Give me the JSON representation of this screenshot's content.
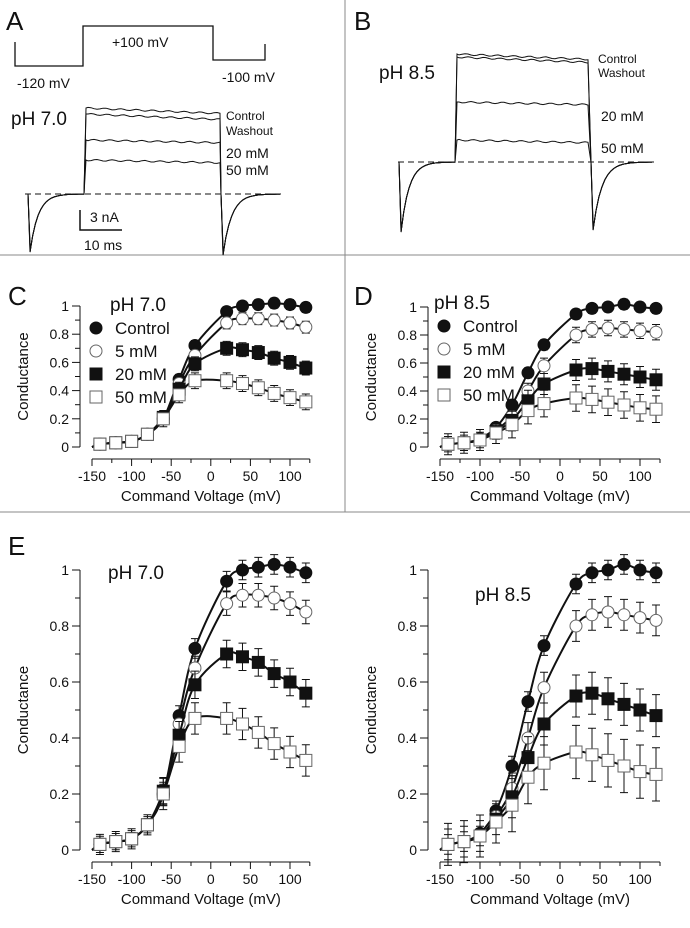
{
  "panel_a": {
    "letter": "A",
    "step_label": "+100 mV",
    "hold_label": "-120 mV",
    "tail_label": "-100 mV",
    "ph": "pH 7.0",
    "traces": [
      "Control",
      "Washout",
      "20 mM",
      "50 mM"
    ],
    "scale_current": "3 nA",
    "scale_time": "10 ms"
  },
  "panel_b": {
    "letter": "B",
    "ph": "pH 8.5",
    "traces": [
      "Control",
      "Washout",
      "20 mM",
      "50 mM"
    ]
  },
  "panel_letters": {
    "c": "C",
    "d": "D",
    "e": "E"
  },
  "chart_data": [
    {
      "type": "scatter",
      "panel": "C",
      "title": "pH 7.0",
      "xlabel": "Command Voltage (mV)",
      "ylabel": "Conductance",
      "xlim": [
        -150,
        125
      ],
      "ylim": [
        0,
        1
      ],
      "xticks": [
        "-150",
        "-100",
        "-50",
        "0",
        "50",
        "100"
      ],
      "yticks": [
        "0",
        "0.2",
        "0.4",
        "0.6",
        "0.8",
        "1"
      ],
      "legend": "top-left",
      "x": [
        -140,
        -120,
        -100,
        -80,
        -60,
        -40,
        -20,
        20,
        40,
        60,
        80,
        100,
        120
      ],
      "series": [
        {
          "name": "Control",
          "marker": "filled-circle",
          "values": [
            0.02,
            0.03,
            0.04,
            0.09,
            0.2,
            0.48,
            0.72,
            0.96,
            1.0,
            1.01,
            1.02,
            1.01,
            0.99
          ]
        },
        {
          "name": "5 mM",
          "marker": "open-circle",
          "values": [
            0.02,
            0.03,
            0.04,
            0.09,
            0.2,
            0.45,
            0.65,
            0.88,
            0.91,
            0.91,
            0.9,
            0.88,
            0.85
          ]
        },
        {
          "name": "20 mM",
          "marker": "filled-square",
          "values": [
            0.02,
            0.03,
            0.04,
            0.09,
            0.21,
            0.41,
            0.59,
            0.7,
            0.69,
            0.67,
            0.63,
            0.6,
            0.56
          ]
        },
        {
          "name": "50 mM",
          "marker": "open-square",
          "values": [
            0.02,
            0.03,
            0.04,
            0.09,
            0.2,
            0.37,
            0.47,
            0.47,
            0.45,
            0.42,
            0.38,
            0.35,
            0.32
          ]
        }
      ]
    },
    {
      "type": "scatter",
      "panel": "D",
      "title": "pH 8.5",
      "xlabel": "Command Voltage (mV)",
      "ylabel": "Conductance",
      "xlim": [
        -150,
        125
      ],
      "ylim": [
        0,
        1
      ],
      "xticks": [
        "-150",
        "-100",
        "-50",
        "0",
        "50",
        "100"
      ],
      "yticks": [
        "0",
        "0.2",
        "0.4",
        "0.6",
        "0.8",
        "1"
      ],
      "legend": "top-left",
      "x": [
        -140,
        -120,
        -100,
        -80,
        -60,
        -40,
        -20,
        20,
        40,
        60,
        80,
        100,
        120
      ],
      "series": [
        {
          "name": "Control",
          "marker": "filled-circle",
          "values": [
            0.02,
            0.03,
            0.06,
            0.14,
            0.3,
            0.53,
            0.73,
            0.95,
            0.99,
            1.0,
            1.02,
            1.0,
            0.99
          ]
        },
        {
          "name": "5 mM",
          "marker": "open-circle",
          "values": [
            0.02,
            0.03,
            0.05,
            0.12,
            0.22,
            0.4,
            0.58,
            0.8,
            0.84,
            0.85,
            0.84,
            0.83,
            0.82
          ]
        },
        {
          "name": "20 mM",
          "marker": "filled-square",
          "values": [
            0.02,
            0.03,
            0.05,
            0.11,
            0.19,
            0.33,
            0.45,
            0.55,
            0.56,
            0.54,
            0.52,
            0.5,
            0.48
          ]
        },
        {
          "name": "50 mM",
          "marker": "open-square",
          "values": [
            0.02,
            0.03,
            0.05,
            0.1,
            0.16,
            0.26,
            0.31,
            0.35,
            0.34,
            0.32,
            0.3,
            0.28,
            0.27
          ]
        }
      ]
    },
    {
      "type": "scatter",
      "panel": "E-left",
      "title": "pH 7.0",
      "xlabel": "Command Voltage (mV)",
      "ylabel": "Conductance",
      "xlim": [
        -150,
        125
      ],
      "ylim": [
        0,
        1
      ],
      "xticks": [
        "-150",
        "-100",
        "-50",
        "0",
        "50",
        "100"
      ],
      "yticks": [
        "0",
        "0.2",
        "0.4",
        "0.6",
        "0.8",
        "1"
      ],
      "x": [
        -140,
        -120,
        -100,
        -80,
        -60,
        -40,
        -20,
        20,
        40,
        60,
        80,
        100,
        120
      ],
      "series": [
        {
          "marker": "filled-circle",
          "values": [
            0.02,
            0.03,
            0.04,
            0.09,
            0.2,
            0.48,
            0.72,
            0.96,
            1.0,
            1.01,
            1.02,
            1.01,
            0.99
          ]
        },
        {
          "marker": "open-circle",
          "values": [
            0.02,
            0.03,
            0.04,
            0.09,
            0.2,
            0.45,
            0.65,
            0.88,
            0.91,
            0.91,
            0.9,
            0.88,
            0.85
          ]
        },
        {
          "marker": "filled-square",
          "values": [
            0.02,
            0.03,
            0.04,
            0.09,
            0.21,
            0.41,
            0.59,
            0.7,
            0.69,
            0.67,
            0.63,
            0.6,
            0.56
          ]
        },
        {
          "marker": "open-square",
          "values": [
            0.02,
            0.03,
            0.04,
            0.09,
            0.2,
            0.37,
            0.47,
            0.47,
            0.45,
            0.42,
            0.38,
            0.35,
            0.32
          ]
        }
      ]
    },
    {
      "type": "scatter",
      "panel": "E-right",
      "title": "pH 8.5",
      "xlabel": "Command Voltage (mV)",
      "ylabel": "Conductance",
      "xlim": [
        -150,
        125
      ],
      "ylim": [
        0,
        1
      ],
      "xticks": [
        "-150",
        "-100",
        "-50",
        "0",
        "50",
        "100"
      ],
      "yticks": [
        "0",
        "0.2",
        "0.4",
        "0.6",
        "0.8",
        "1"
      ],
      "x": [
        -140,
        -120,
        -100,
        -80,
        -60,
        -40,
        -20,
        20,
        40,
        60,
        80,
        100,
        120
      ],
      "series": [
        {
          "marker": "filled-circle",
          "values": [
            0.02,
            0.03,
            0.06,
            0.14,
            0.3,
            0.53,
            0.73,
            0.95,
            0.99,
            1.0,
            1.02,
            1.0,
            0.99
          ]
        },
        {
          "marker": "open-circle",
          "values": [
            0.02,
            0.03,
            0.05,
            0.12,
            0.22,
            0.4,
            0.58,
            0.8,
            0.84,
            0.85,
            0.84,
            0.83,
            0.82
          ]
        },
        {
          "marker": "filled-square",
          "values": [
            0.02,
            0.03,
            0.05,
            0.11,
            0.19,
            0.33,
            0.45,
            0.55,
            0.56,
            0.54,
            0.52,
            0.5,
            0.48
          ]
        },
        {
          "marker": "open-square",
          "values": [
            0.02,
            0.03,
            0.05,
            0.1,
            0.16,
            0.26,
            0.31,
            0.35,
            0.34,
            0.32,
            0.3,
            0.28,
            0.27
          ]
        }
      ]
    }
  ]
}
